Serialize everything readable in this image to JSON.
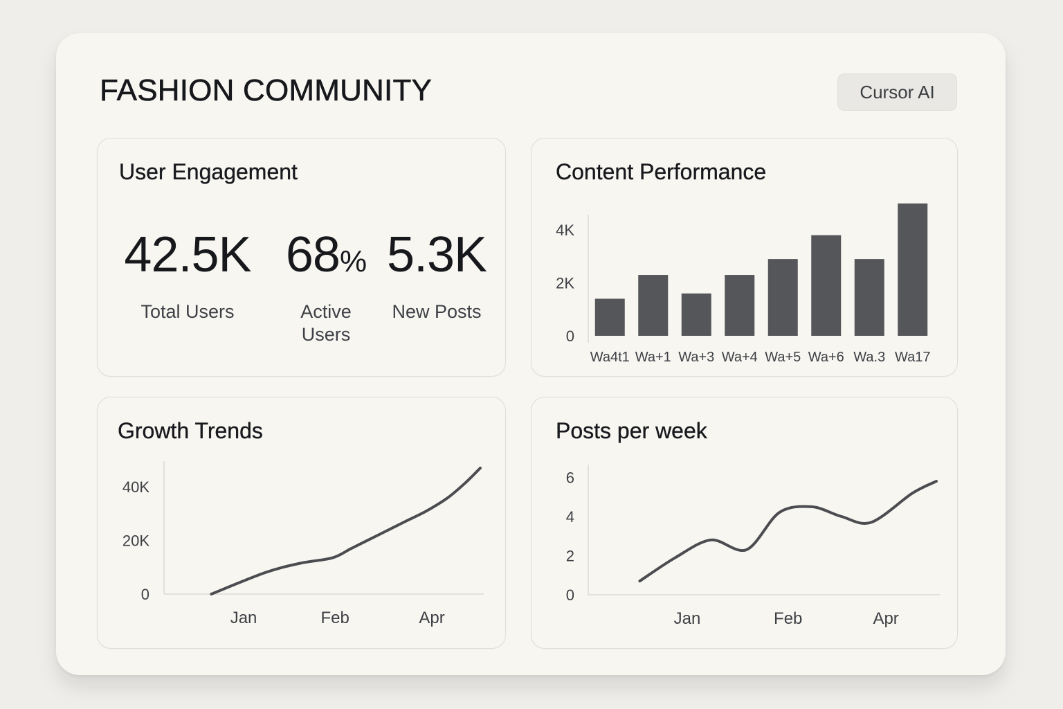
{
  "header": {
    "title": "FASHION COMMUNITY",
    "button_label": "Cursor AI"
  },
  "engagement": {
    "title": "User Engagement",
    "metrics": [
      {
        "value": "42.5K",
        "unit": "",
        "label": "Total Users"
      },
      {
        "value": "68",
        "unit": "%",
        "label": "Active\nUsers"
      },
      {
        "value": "5.3K",
        "unit": "",
        "label": "New Posts"
      }
    ]
  },
  "colors": {
    "bar": "#55565a",
    "line": "#4b4c50",
    "axis": "#dcdad5",
    "tick_text": "#3d4045"
  },
  "chart_data": [
    {
      "id": "content-performance",
      "type": "bar",
      "title": "Content Performance",
      "categories": [
        "Wa4t1",
        "Wa+1",
        "Wa+3",
        "Wa+4",
        "Wa+5",
        "Wa+6",
        "Wa.3",
        "Wa17"
      ],
      "values": [
        1.4,
        2.3,
        1.6,
        2.3,
        2.9,
        3.8,
        2.9,
        5.0
      ],
      "yticks": [
        {
          "value": 0,
          "label": "0"
        },
        {
          "value": 2,
          "label": "2K"
        },
        {
          "value": 4,
          "label": "4K"
        }
      ],
      "ylim": [
        0,
        5.1
      ],
      "xlabel": "",
      "ylabel": "",
      "grid": false
    },
    {
      "id": "growth-trends",
      "type": "line",
      "title": "Growth Trends",
      "x": [
        0,
        0.2,
        0.33,
        0.45,
        0.52,
        0.6,
        0.66,
        0.72,
        0.8,
        0.88,
        0.95,
        1.0
      ],
      "y": [
        0,
        8000,
        11500,
        13500,
        17000,
        21000,
        24000,
        27000,
        31000,
        36000,
        42000,
        47000
      ],
      "xticks": [
        {
          "value": 0.12,
          "label": "Jan"
        },
        {
          "value": 0.46,
          "label": "Feb"
        },
        {
          "value": 0.82,
          "label": "Apr"
        }
      ],
      "yticks": [
        {
          "value": 0,
          "label": "0"
        },
        {
          "value": 20000,
          "label": "20K"
        },
        {
          "value": 40000,
          "label": "40K"
        }
      ],
      "xlim": [
        -0.05,
        1.0
      ],
      "ylim": [
        0,
        47000
      ],
      "xlabel": "",
      "ylabel": "",
      "grid": false
    },
    {
      "id": "posts-per-week",
      "type": "line",
      "title": "Posts per week",
      "x": [
        0,
        0.12,
        0.24,
        0.36,
        0.47,
        0.58,
        0.68,
        0.78,
        0.92,
        1.0
      ],
      "y": [
        0.7,
        1.9,
        2.8,
        2.3,
        4.2,
        4.5,
        4.0,
        3.7,
        5.2,
        5.8
      ],
      "xticks": [
        {
          "value": 0.16,
          "label": "Jan"
        },
        {
          "value": 0.5,
          "label": "Feb"
        },
        {
          "value": 0.83,
          "label": "Apr"
        }
      ],
      "yticks": [
        {
          "value": 0,
          "label": "0"
        },
        {
          "value": 2,
          "label": "2"
        },
        {
          "value": 4,
          "label": "4"
        },
        {
          "value": 6,
          "label": "6"
        }
      ],
      "xlim": [
        -0.05,
        1.0
      ],
      "ylim": [
        0,
        6.3
      ],
      "xlabel": "",
      "ylabel": "",
      "grid": false
    }
  ]
}
